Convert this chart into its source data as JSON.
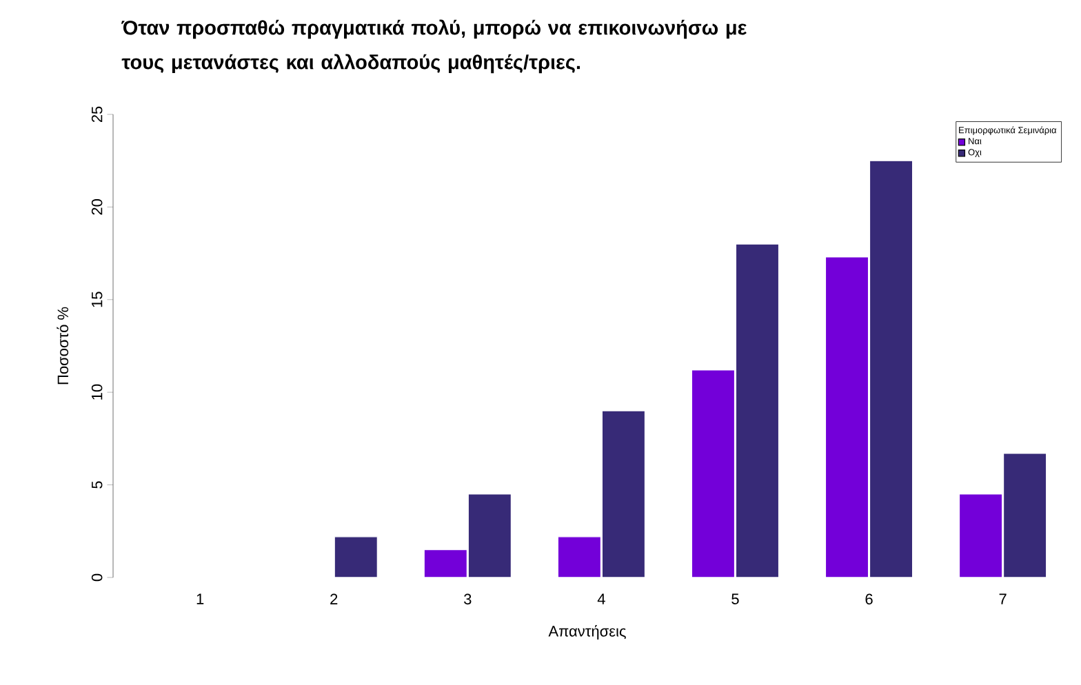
{
  "chart_data": {
    "type": "bar",
    "title": "Όταν προσπαθώ πραγματικά πολύ, μπορώ να επικοινωνήσω με τους μετανάστες και αλλοδαπούς μαθητές/τριες.",
    "xlabel": "Απαντήσεις",
    "ylabel": "Ποσοστό %",
    "legend_title": "Επιμορφωτικά  Σεμινάρια",
    "categories": [
      "1",
      "2",
      "3",
      "4",
      "5",
      "6",
      "7"
    ],
    "series": [
      {
        "name": "Ναι",
        "color": "#7300d9",
        "values": [
          null,
          null,
          1.5,
          2.2,
          11.2,
          17.3,
          4.5
        ]
      },
      {
        "name": "Οχι",
        "color": "#372a77",
        "values": [
          null,
          2.2,
          4.5,
          9.0,
          18.0,
          22.5,
          6.7
        ]
      }
    ],
    "ylim": [
      0,
      25
    ],
    "yticks": [
      0,
      5,
      10,
      15,
      20,
      25
    ],
    "legend": "top right"
  }
}
